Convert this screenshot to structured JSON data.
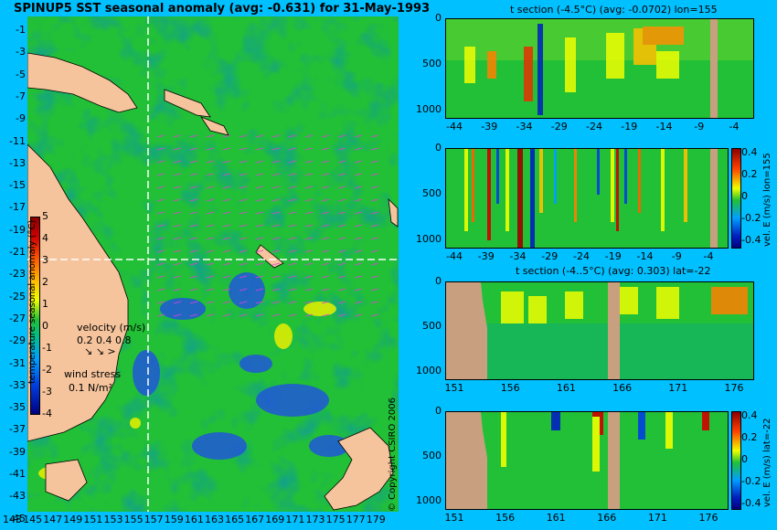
{
  "map": {
    "title": "SPINUP5 SST seasonal anomaly (avg: -0.631) for 31-May-1993",
    "lat_labels": [
      "-1",
      "-3",
      "-5",
      "-7",
      "-9",
      "-11",
      "-13",
      "-15",
      "-17",
      "-19",
      "-21",
      "-23",
      "-25",
      "-27",
      "-29",
      "-31",
      "-33",
      "-35",
      "-37",
      "-39",
      "-41",
      "-43",
      "-45"
    ],
    "lon_labels": [
      "143",
      "145",
      "147",
      "149",
      "151",
      "153",
      "155",
      "157",
      "159",
      "161",
      "163",
      "165",
      "167",
      "169",
      "171",
      "173",
      "175",
      "177",
      "179"
    ],
    "colorbar": {
      "ticks": [
        "5",
        "4",
        "3",
        "2",
        "1",
        "0",
        "-1",
        "-2",
        "-3",
        "-4"
      ],
      "label": "temperature seasonal anomaly (°C)"
    },
    "velocity_legend": {
      "title": "velocity (m/s)",
      "values": "0.2 0.4 0.8"
    },
    "wind_legend": {
      "title": "wind stress",
      "value": "0.1 N/m²"
    },
    "colors": {
      "ocean": "#22c036",
      "land": "#f5c49c",
      "background": "#00c0ff"
    }
  },
  "panels": [
    {
      "title": "t section (-4.5°C) (avg: -0.0702) lon=155",
      "x_ticks": [
        "-44",
        "-39",
        "-34",
        "-29",
        "-24",
        "-19",
        "-14",
        "-9",
        "-4"
      ],
      "y_ticks": [
        "0",
        "500",
        "1000"
      ]
    },
    {
      "title": "",
      "x_ticks": [
        "-44",
        "-39",
        "-34",
        "-29",
        "-24",
        "-19",
        "-14",
        "-9",
        "-4"
      ],
      "y_ticks": [
        "0",
        "500",
        "1000"
      ],
      "colorbar_ticks": [
        "0.4",
        "0.2",
        "0",
        "-0.2",
        "-0.4"
      ],
      "colorbar_label": "vel. E (m/s) lon=155"
    },
    {
      "title": "t section (-4..5°C) (avg: 0.303) lat=-22",
      "x_ticks": [
        "151",
        "156",
        "161",
        "166",
        "171",
        "176"
      ],
      "y_ticks": [
        "0",
        "500",
        "1000"
      ]
    },
    {
      "title": "",
      "x_ticks": [
        "151",
        "156",
        "161",
        "166",
        "171",
        "176"
      ],
      "y_ticks": [
        "0",
        "500",
        "1000"
      ],
      "colorbar_ticks": [
        "0.4",
        "0.2",
        "0",
        "-0.2",
        "-0.4"
      ],
      "colorbar_label": "vel. E (m/s) lat=-22"
    }
  ],
  "copyright": "© Copyright CSIRO 2006",
  "chart_data": [
    {
      "type": "heatmap",
      "title": "SPINUP5 SST seasonal anomaly (avg: -0.631) for 31-May-1993",
      "xlabel": "",
      "ylabel": "",
      "xlim": [
        143,
        180
      ],
      "ylim": [
        -45,
        0
      ],
      "crosshair": {
        "lon": 155,
        "lat": -22
      },
      "colorbar_range": [
        -4,
        5
      ]
    },
    {
      "type": "heatmap",
      "title": "t section (-4.5°C) (avg: -0.0702) lon=155",
      "xlim": [
        -46,
        0
      ],
      "ylim": [
        1050,
        0
      ]
    },
    {
      "type": "heatmap",
      "title": "",
      "xlim": [
        -46,
        0
      ],
      "ylim": [
        1050,
        0
      ],
      "colorbar_range": [
        -0.4,
        0.4
      ]
    },
    {
      "type": "heatmap",
      "title": "t section (-4..5°C) (avg: 0.303) lat=-22",
      "xlim": [
        150,
        180
      ],
      "ylim": [
        1050,
        0
      ]
    },
    {
      "type": "heatmap",
      "title": "",
      "xlim": [
        150,
        180
      ],
      "ylim": [
        1050,
        0
      ],
      "colorbar_range": [
        -0.4,
        0.4
      ]
    }
  ]
}
